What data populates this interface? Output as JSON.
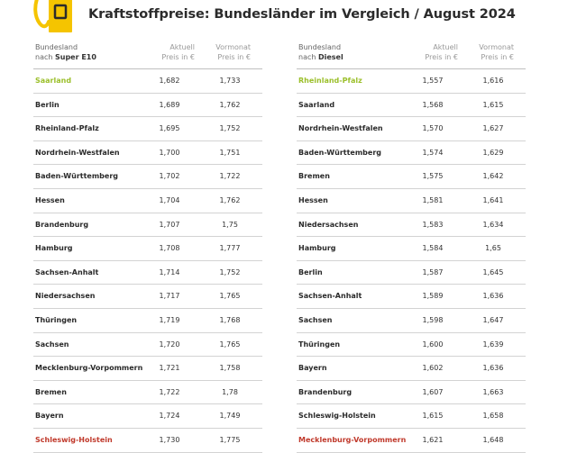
{
  "title": "Kraftstoffpreise: Bundesländer im Vergleich / August 2024",
  "colors": {
    "pump": "#f5c400",
    "best": "#9bbf2a",
    "worst": "#c0392b"
  },
  "left": {
    "header": {
      "col1_line1": "Bundesland",
      "col1_prefix": "nach ",
      "col1_fuel": "Super E10",
      "col2_line1": "Aktuell",
      "col2_line2": "Preis in €",
      "col3_line1": "Vormonat",
      "col3_line2": "Preis in €"
    },
    "rows": [
      {
        "name": "Saarland",
        "current": "1,682",
        "previous": "1,733"
      },
      {
        "name": "Berlin",
        "current": "1,689",
        "previous": "1,762"
      },
      {
        "name": "Rheinland-Pfalz",
        "current": "1,695",
        "previous": "1,752"
      },
      {
        "name": "Nordrhein-Westfalen",
        "current": "1,700",
        "previous": "1,751"
      },
      {
        "name": "Baden-Württemberg",
        "current": "1,702",
        "previous": "1,722"
      },
      {
        "name": "Hessen",
        "current": "1,704",
        "previous": "1,762"
      },
      {
        "name": "Brandenburg",
        "current": "1,707",
        "previous": "1,75"
      },
      {
        "name": "Hamburg",
        "current": "1,708",
        "previous": "1,777"
      },
      {
        "name": "Sachsen-Anhalt",
        "current": "1,714",
        "previous": "1,752"
      },
      {
        "name": "Niedersachsen",
        "current": "1,717",
        "previous": "1,765"
      },
      {
        "name": "Thüringen",
        "current": "1,719",
        "previous": "1,768"
      },
      {
        "name": "Sachsen",
        "current": "1,720",
        "previous": "1,765"
      },
      {
        "name": "Mecklenburg-Vorpommern",
        "current": "1,721",
        "previous": "1,758"
      },
      {
        "name": "Bremen",
        "current": "1,722",
        "previous": "1,78"
      },
      {
        "name": "Bayern",
        "current": "1,724",
        "previous": "1,749"
      },
      {
        "name": "Schleswig-Holstein",
        "current": "1,730",
        "previous": "1,775"
      }
    ]
  },
  "right": {
    "header": {
      "col1_line1": "Bundesland",
      "col1_prefix": "nach ",
      "col1_fuel": "Diesel",
      "col2_line1": "Aktuell",
      "col2_line2": "Preis in €",
      "col3_line1": "Vormonat",
      "col3_line2": "Preis in €"
    },
    "rows": [
      {
        "name": "Rheinland-Pfalz",
        "current": "1,557",
        "previous": "1,616"
      },
      {
        "name": "Saarland",
        "current": "1,568",
        "previous": "1,615"
      },
      {
        "name": "Nordrhein-Westfalen",
        "current": "1,570",
        "previous": "1,627"
      },
      {
        "name": "Baden-Württemberg",
        "current": "1,574",
        "previous": "1,629"
      },
      {
        "name": "Bremen",
        "current": "1,575",
        "previous": "1,642"
      },
      {
        "name": "Hessen",
        "current": "1,581",
        "previous": "1,641"
      },
      {
        "name": "Niedersachsen",
        "current": "1,583",
        "previous": "1,634"
      },
      {
        "name": "Hamburg",
        "current": "1,584",
        "previous": "1,65"
      },
      {
        "name": "Berlin",
        "current": "1,587",
        "previous": "1,645"
      },
      {
        "name": "Sachsen-Anhalt",
        "current": "1,589",
        "previous": "1,636"
      },
      {
        "name": "Sachsen",
        "current": "1,598",
        "previous": "1,647"
      },
      {
        "name": "Thüringen",
        "current": "1,600",
        "previous": "1,639"
      },
      {
        "name": "Bayern",
        "current": "1,602",
        "previous": "1,636"
      },
      {
        "name": "Brandenburg",
        "current": "1,607",
        "previous": "1,663"
      },
      {
        "name": "Schleswig-Holstein",
        "current": "1,615",
        "previous": "1,658"
      },
      {
        "name": "Mecklenburg-Vorpommern",
        "current": "1,621",
        "previous": "1,648"
      }
    ]
  }
}
